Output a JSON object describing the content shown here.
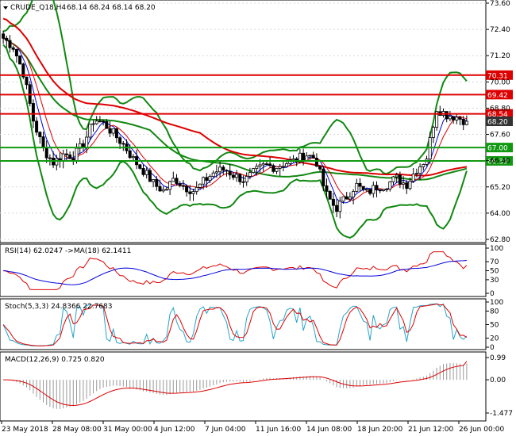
{
  "header": {
    "symbol_label": "CRUDE_Q18,H4",
    "ohlc_values": "68.14 68.24 68.14 68.20"
  },
  "main_axis": {
    "ticks": [
      "73.60",
      "72.40",
      "71.20",
      "70.00",
      "68.80",
      "67.60",
      "66.40",
      "65.20",
      "64.00",
      "62.80"
    ]
  },
  "price_levels": [
    {
      "value": "70.31",
      "color": "#dd0000"
    },
    {
      "value": "69.42",
      "color": "#dd0000"
    },
    {
      "value": "68.54",
      "color": "#dd0000"
    },
    {
      "value": "68.20",
      "color": "#333333"
    },
    {
      "value": "67.00",
      "color": "#119911"
    },
    {
      "value": "66.39",
      "color": "#119911"
    }
  ],
  "rsi_panel": {
    "label": "RSI(14) 62.0247 ->MA(18) 62.1411",
    "ticks": [
      "100",
      "70",
      "50",
      "30",
      "0"
    ]
  },
  "stoch_panel": {
    "label": "Stoch(5,3,3) 24.8366 22.7683",
    "ticks": [
      "100",
      "80",
      "50",
      "20",
      "0"
    ]
  },
  "macd_panel": {
    "label": "MACD(12,26,9) 0.725 0.820",
    "ticks": [
      "0.99",
      "0.00",
      "-1.477"
    ]
  },
  "time_axis": {
    "labels": [
      "23 May 2018",
      "28 May 08:00",
      "31 May 00:00",
      "4 Jun 12:00",
      "7 Jun 04:00",
      "11 Jun 16:00",
      "14 Jun 08:00",
      "18 Jun 20:00",
      "21 Jun 12:00",
      "26 Jun 00:00"
    ]
  },
  "colors": {
    "bullish_candle": "#ffffff",
    "bearish_candle": "#000000",
    "resistance": "#dd0000",
    "support": "#119911",
    "bollinger": "#118811",
    "ma_red": "#dd0000",
    "ma_green": "#118811",
    "ma_blue": "#0000dd",
    "stoch_main": "#26a3c9",
    "macd_signal": "#dd0000"
  },
  "chart_data": {
    "type": "candlestick",
    "symbol": "CRUDE_Q18",
    "timeframe": "H4",
    "last": {
      "open": 68.14,
      "high": 68.24,
      "low": 68.14,
      "close": 68.2
    },
    "ylim": [
      62.8,
      73.6
    ],
    "x_labels": [
      "23 May 2018",
      "28 May 08:00",
      "31 May 00:00",
      "4 Jun 12:00",
      "7 Jun 04:00",
      "11 Jun 16:00",
      "14 Jun 08:00",
      "18 Jun 20:00",
      "21 Jun 12:00",
      "26 Jun 00:00"
    ],
    "close_path": [
      72.0,
      71.6,
      70.4,
      68.2,
      66.9,
      66.3,
      66.7,
      66.6,
      67.2,
      68.3,
      68.1,
      67.6,
      67.1,
      66.4,
      65.9,
      65.3,
      65.0,
      65.6,
      65.2,
      65.0,
      65.5,
      65.9,
      66.0,
      65.7,
      65.5,
      65.9,
      66.2,
      66.1,
      66.3,
      66.4,
      66.7,
      66.5,
      64.9,
      64.2,
      64.7,
      65.3,
      64.9,
      65.2,
      65.3,
      65.6,
      65.3,
      66.0,
      66.5,
      68.8,
      68.5,
      68.4,
      68.2
    ],
    "levels": {
      "resistance": [
        70.31,
        69.42,
        68.54
      ],
      "support": [
        67.0,
        66.39
      ],
      "current": 68.2
    },
    "rsi": {
      "period": 14,
      "value": 62.0247,
      "ma_period": 18,
      "ma_value": 62.1411,
      "ylim": [
        0,
        100
      ]
    },
    "stochastic": {
      "k": 5,
      "d": 3,
      "slowing": 3,
      "main": 24.8366,
      "signal": 22.7683,
      "ylim": [
        0,
        100
      ]
    },
    "macd": {
      "fast": 12,
      "slow": 26,
      "signal": 9,
      "main": 0.725,
      "signal_value": 0.82,
      "ylim": [
        -1.477,
        0.99
      ]
    }
  }
}
